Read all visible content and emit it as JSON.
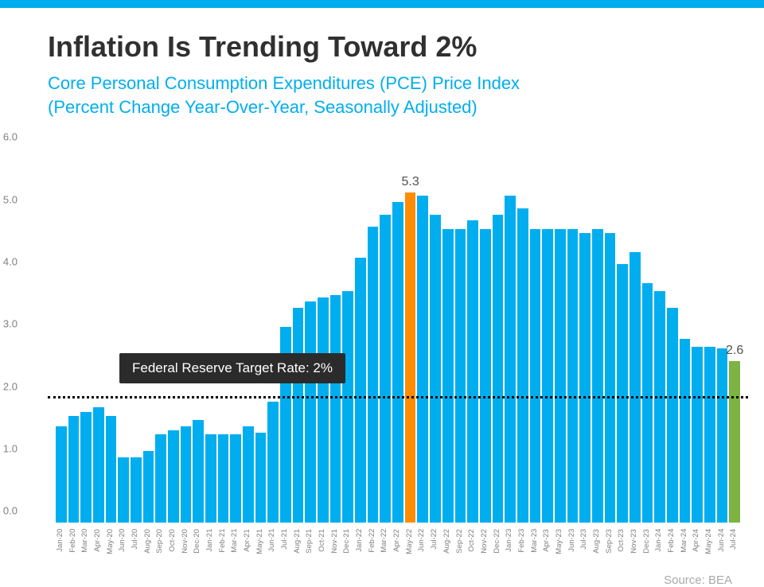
{
  "theme": {
    "topbar_color": "#00aeef",
    "subtitle_color": "#00aeef",
    "source_color": "#a9a9a9"
  },
  "title": "Inflation Is Trending Toward 2%",
  "subtitle_line1": "Core Personal Consumption Expenditures (PCE) Price Index",
  "subtitle_line2": "(Percent Change Year-Over-Year, Seasonally Adjusted)",
  "source": "Source: BEA",
  "chart": {
    "type": "bar",
    "y_max": 6.0,
    "y_ticks": [
      "0.0",
      "1.0",
      "2.0",
      "3.0",
      "4.0",
      "5.0",
      "6.0"
    ],
    "default_bar_color": "#00aeef",
    "highlight_peak_color": "#ff8c00",
    "highlight_last_color": "#7cb342",
    "target_value": 2.0,
    "target_label": "Federal Reserve Target Rate: 2%",
    "bars": [
      {
        "label": "Jan-20",
        "value": 1.55
      },
      {
        "label": "Feb-20",
        "value": 1.72
      },
      {
        "label": "Mar-20",
        "value": 1.78
      },
      {
        "label": "Apr-20",
        "value": 1.85
      },
      {
        "label": "May-20",
        "value": 1.72
      },
      {
        "label": "Jun-20",
        "value": 1.05
      },
      {
        "label": "Jul-20",
        "value": 1.05
      },
      {
        "label": "Aug-20",
        "value": 1.15
      },
      {
        "label": "Sep-20",
        "value": 1.42
      },
      {
        "label": "Oct-20",
        "value": 1.48
      },
      {
        "label": "Nov-20",
        "value": 1.55
      },
      {
        "label": "Dec-20",
        "value": 1.65
      },
      {
        "label": "Jan-21",
        "value": 1.42
      },
      {
        "label": "Feb-21",
        "value": 1.42
      },
      {
        "label": "Mar-21",
        "value": 1.42
      },
      {
        "label": "Apr-21",
        "value": 1.55
      },
      {
        "label": "May-21",
        "value": 1.45
      },
      {
        "label": "Jun-21",
        "value": 1.95
      },
      {
        "label": "Jul-21",
        "value": 3.15
      },
      {
        "label": "Aug-21",
        "value": 3.45
      },
      {
        "label": "Sep-21",
        "value": 3.55
      },
      {
        "label": "Oct-21",
        "value": 3.62
      },
      {
        "label": "Nov-21",
        "value": 3.65
      },
      {
        "label": "Dec-21",
        "value": 3.72
      },
      {
        "label": "Jan-22",
        "value": 4.25
      },
      {
        "label": "Feb-22",
        "value": 4.75
      },
      {
        "label": "Mar-22",
        "value": 4.95
      },
      {
        "label": "Apr-22",
        "value": 5.15
      },
      {
        "label": "May-22",
        "value": 5.3,
        "highlight": "peak",
        "top_label": "5.3"
      },
      {
        "label": "Jun-22",
        "value": 5.25
      },
      {
        "label": "Jul-22",
        "value": 4.95
      },
      {
        "label": "Aug-22",
        "value": 4.72
      },
      {
        "label": "Sep-22",
        "value": 4.72
      },
      {
        "label": "Oct-22",
        "value": 4.85
      },
      {
        "label": "Nov-22",
        "value": 4.72
      },
      {
        "label": "Dec-22",
        "value": 4.95
      },
      {
        "label": "Jan-23",
        "value": 5.25
      },
      {
        "label": "Feb-23",
        "value": 5.05
      },
      {
        "label": "Mar-23",
        "value": 4.72
      },
      {
        "label": "Apr-23",
        "value": 4.72
      },
      {
        "label": "May-23",
        "value": 4.72
      },
      {
        "label": "Jun-23",
        "value": 4.72
      },
      {
        "label": "Jul-23",
        "value": 4.65
      },
      {
        "label": "Aug-23",
        "value": 4.72
      },
      {
        "label": "Sep-23",
        "value": 4.65
      },
      {
        "label": "Oct-23",
        "value": 4.15
      },
      {
        "label": "Nov-23",
        "value": 4.35
      },
      {
        "label": "Dec-23",
        "value": 3.85
      },
      {
        "label": "Jan-24",
        "value": 3.72
      },
      {
        "label": "Feb-24",
        "value": 3.45
      },
      {
        "label": "Mar-24",
        "value": 2.95
      },
      {
        "label": "Apr-24",
        "value": 2.82
      },
      {
        "label": "May-24",
        "value": 2.82
      },
      {
        "label": "Jun-24",
        "value": 2.8
      },
      {
        "label": "Jul-24",
        "value": 2.6,
        "highlight": "last",
        "top_label": "2.6"
      }
    ]
  }
}
